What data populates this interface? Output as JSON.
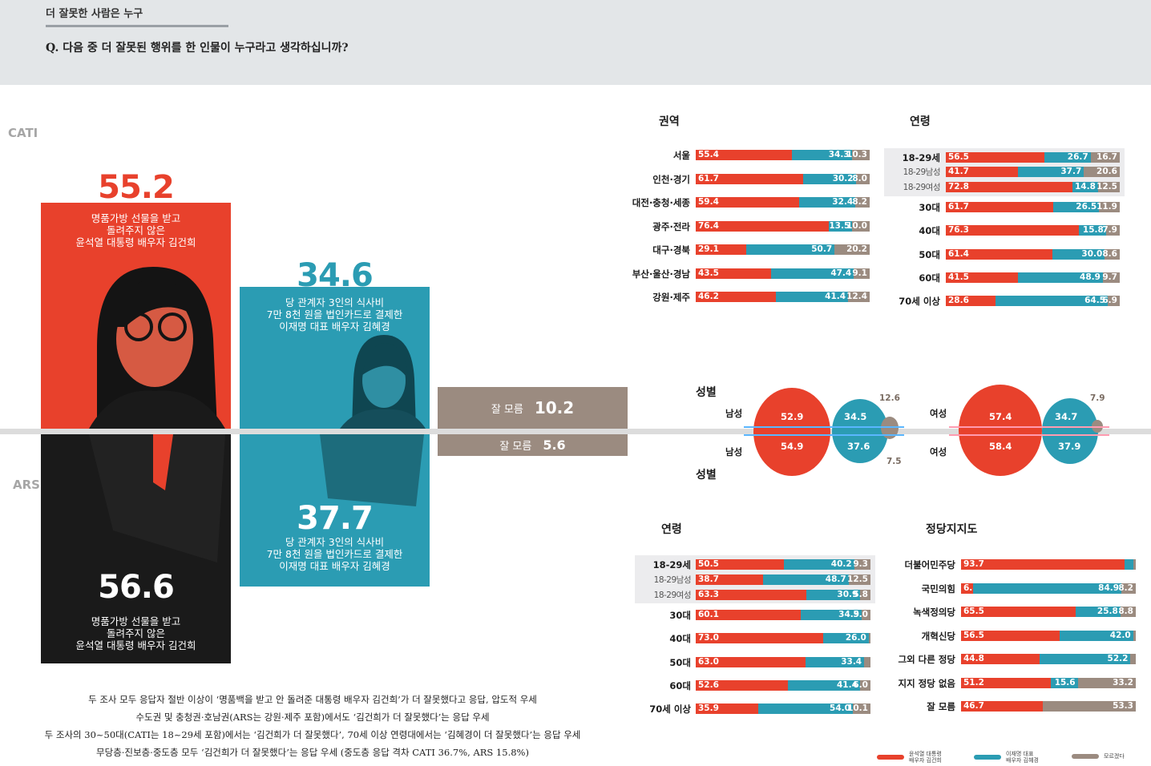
{
  "header": {
    "title": "더 잘못한 사람은 누구",
    "question": "Q. 다음 중 더 잘못된 행위를 한 인물이 누구라고 생각하십니까?"
  },
  "colors": {
    "red": "#e8412c",
    "teal": "#2b9cb3",
    "grey": "#9b8b80",
    "dark": "#1a1a1a"
  },
  "survey_labels": {
    "cati": "CATI",
    "ars": "ARS"
  },
  "main": {
    "cati_kim_geonhee": {
      "value": "55.2",
      "text": "명품가방 선물을 받고\n돌려주지 않은\n윤석열 대통령 배우자 김건희"
    },
    "cati_kim_hyekyung": {
      "value": "34.6",
      "text": "당 관계자 3인의 식사비\n7만 8천 원을 법인카드로 결제한\n이재명 대표 배우자 김혜경"
    },
    "ars_kim_hyekyung": {
      "value": "37.7",
      "text": "당 관계자 3인의 식사비\n7만 8천 원을 법인카드로 결제한\n이재명 대표 배우자 김혜경"
    },
    "ars_kim_geonhee": {
      "value": "56.6",
      "text": "명품가방 선물을 받고\n돌려주지 않은\n윤석열 대통령 배우자 김건희"
    },
    "cati_dont_know": {
      "label": "잘 모름",
      "value": "10.2"
    },
    "ars_dont_know": {
      "label": "잘 모름",
      "value": "5.6"
    }
  },
  "summary_lines": [
    "두 조사 모두 응답자 절반 이상이 ‘명품백을 받고 안 돌려준 대통령 배우자 김건희’가 더 잘못했다고 응답, 압도적 우세",
    "수도권 및 충청권·호남권(ARS는 강원·제주 포함)에서도 ‘김건희가 더 잘못했다’는 응답 우세",
    "두 조사의 30~50대(CATI는 18~29세 포함)에서는 ‘김건희가 더 잘못했다’, 70세 이상 연령대에서는 ‘김혜경이 더 잘못했다’는 응답 우세",
    "무당층·진보층·중도층 모두 ‘김건희가 더 잘못했다’는 응답 우세 (중도층 응답 격차 CATI 36.7%, ARS 15.8%)"
  ],
  "legend": [
    {
      "label": "윤석열 대통령\n배우자 김건희",
      "color": "#e8412c"
    },
    {
      "label": "이재명 대표\n배우자 김혜경",
      "color": "#2b9cb3"
    },
    {
      "label": "모르겠다",
      "color": "#9b8b80"
    }
  ],
  "chart_data": [
    {
      "type": "bar",
      "title": "",
      "categories": [
        "CATI",
        "ARS"
      ],
      "series": [
        {
          "name": "윤석열 대통령 배우자 김건희",
          "values": [
            55.2,
            56.6
          ]
        },
        {
          "name": "이재명 대표 배우자 김혜경",
          "values": [
            34.6,
            37.7
          ]
        },
        {
          "name": "잘 모름",
          "values": [
            10.2,
            5.6
          ]
        }
      ]
    },
    {
      "type": "bar",
      "stacked": true,
      "title": "권역",
      "categories": [
        "서울",
        "인천·경기",
        "대전·충청·세종",
        "광주·전라",
        "대구·경북",
        "부산·울산·경남",
        "강원·제주"
      ],
      "series": [
        {
          "values": [
            55.4,
            61.7,
            59.4,
            76.4,
            29.1,
            43.5,
            46.2
          ]
        },
        {
          "values": [
            34.3,
            30.2,
            32.4,
            13.5,
            50.7,
            47.4,
            41.4
          ]
        },
        {
          "values": [
            10.3,
            8.0,
            8.2,
            10.0,
            20.2,
            9.1,
            12.4
          ]
        }
      ]
    },
    {
      "type": "bar",
      "stacked": true,
      "title": "연령",
      "categories": [
        "18-29세",
        "18-29남성",
        "18-29여성",
        "30대",
        "40대",
        "50대",
        "60대",
        "70세 이상"
      ],
      "series": [
        {
          "values": [
            56.5,
            41.7,
            72.8,
            61.7,
            76.3,
            61.4,
            41.5,
            28.6
          ]
        },
        {
          "values": [
            26.7,
            37.7,
            14.8,
            26.5,
            15.8,
            30.0,
            48.9,
            64.5
          ]
        },
        {
          "values": [
            16.7,
            20.6,
            12.5,
            11.9,
            7.9,
            8.6,
            9.7,
            6.9
          ]
        }
      ]
    },
    {
      "type": "bubble",
      "title": "성별",
      "groups": [
        {
          "label": "남성",
          "cati": [
            52.9,
            34.5,
            12.6
          ],
          "ars": [
            54.9,
            37.6,
            7.5
          ]
        },
        {
          "label": "여성",
          "cati": [
            57.4,
            34.7,
            7.9
          ],
          "ars": [
            58.4,
            37.9,
            null
          ]
        }
      ]
    },
    {
      "type": "bar",
      "stacked": true,
      "title": "연령",
      "categories": [
        "18-29세",
        "18-29남성",
        "18-29여성",
        "30대",
        "40대",
        "50대",
        "60대",
        "70세 이상"
      ],
      "series": [
        {
          "values": [
            50.5,
            38.7,
            63.3,
            60.1,
            73.0,
            63.0,
            52.6,
            35.9
          ]
        },
        {
          "values": [
            40.2,
            48.7,
            30.9,
            34.9,
            26.0,
            33.4,
            41.4,
            54.0
          ]
        },
        {
          "values": [
            9.3,
            12.5,
            5.8,
            5.0,
            null,
            null,
            6.0,
            10.1
          ]
        }
      ]
    },
    {
      "type": "bar",
      "stacked": true,
      "title": "정당지지도",
      "categories": [
        "더불어민주당",
        "국민의힘",
        "녹색정의당",
        "개혁신당",
        "그외 다른 정당",
        "지지 정당 없음",
        "잘 모름"
      ],
      "series": [
        {
          "values": [
            93.7,
            6.8,
            65.5,
            56.5,
            44.8,
            51.2,
            46.7
          ]
        },
        {
          "values": [
            null,
            84.9,
            25.8,
            42.0,
            52.2,
            15.6,
            null
          ]
        },
        {
          "values": [
            null,
            8.2,
            8.8,
            null,
            null,
            33.2,
            53.3
          ]
        }
      ]
    }
  ],
  "panels": {
    "region": {
      "title": "권역",
      "rows": [
        {
          "label": "서울",
          "v": [
            55.4,
            34.3,
            10.3
          ],
          "t": [
            "55.4",
            "34.3",
            "10.3"
          ]
        },
        {
          "label": "인천·경기",
          "v": [
            61.7,
            30.2,
            8.0
          ],
          "t": [
            "61.7",
            "30.2",
            "8.0"
          ]
        },
        {
          "label": "대전·충청·세종",
          "v": [
            59.4,
            32.4,
            8.2
          ],
          "t": [
            "59.4",
            "32.4",
            "8.2"
          ]
        },
        {
          "label": "광주·전라",
          "v": [
            76.4,
            13.5,
            10.0
          ],
          "t": [
            "76.4",
            "13.5",
            "10.0"
          ]
        },
        {
          "label": "대구·경북",
          "v": [
            29.1,
            50.7,
            20.2
          ],
          "t": [
            "29.1",
            "50.7",
            "20.2"
          ]
        },
        {
          "label": "부산·울산·경남",
          "v": [
            43.5,
            47.4,
            9.1
          ],
          "t": [
            "43.5",
            "47.4",
            "9.1"
          ]
        },
        {
          "label": "강원·제주",
          "v": [
            46.2,
            41.4,
            12.4
          ],
          "t": [
            "46.2",
            "41.4",
            "12.4"
          ]
        }
      ]
    },
    "age_cati": {
      "title": "연령",
      "rows": [
        {
          "label": "18-29세",
          "v": [
            56.5,
            26.7,
            16.7
          ],
          "t": [
            "56.5",
            "26.7",
            "16.7"
          ],
          "hl": true
        },
        {
          "label": "18-29남성",
          "v": [
            41.7,
            37.7,
            20.6
          ],
          "t": [
            "41.7",
            "37.7",
            "20.6"
          ],
          "hl": true,
          "sub": true
        },
        {
          "label": "18-29여성",
          "v": [
            72.8,
            14.8,
            12.5
          ],
          "t": [
            "72.8",
            "14.8",
            "12.5"
          ],
          "hl": true,
          "sub": true
        },
        {
          "label": "30대",
          "v": [
            61.7,
            26.5,
            11.9
          ],
          "t": [
            "61.7",
            "26.5",
            "11.9"
          ]
        },
        {
          "label": "40대",
          "v": [
            76.3,
            15.8,
            7.9
          ],
          "t": [
            "76.3",
            "15.8",
            "7.9"
          ]
        },
        {
          "label": "50대",
          "v": [
            61.4,
            30.0,
            8.6
          ],
          "t": [
            "61.4",
            "30.0",
            "8.6"
          ]
        },
        {
          "label": "60대",
          "v": [
            41.5,
            48.9,
            9.7
          ],
          "t": [
            "41.5",
            "48.9",
            "9.7"
          ]
        },
        {
          "label": "70세 이상",
          "v": [
            28.6,
            64.5,
            6.9
          ],
          "t": [
            "28.6",
            "64.5",
            "6.9"
          ]
        }
      ]
    },
    "age_ars": {
      "title": "연령",
      "rows": [
        {
          "label": "18-29세",
          "v": [
            50.5,
            40.2,
            9.3
          ],
          "t": [
            "50.5",
            "40.2",
            "9.3"
          ],
          "hl": true
        },
        {
          "label": "18-29남성",
          "v": [
            38.7,
            48.7,
            12.5
          ],
          "t": [
            "38.7",
            "48.7",
            "12.5"
          ],
          "hl": true,
          "sub": true
        },
        {
          "label": "18-29여성",
          "v": [
            63.3,
            30.9,
            5.8
          ],
          "t": [
            "63.3",
            "30.9",
            "5.8"
          ],
          "hl": true,
          "sub": true
        },
        {
          "label": "30대",
          "v": [
            60.1,
            34.9,
            5.0
          ],
          "t": [
            "60.1",
            "34.9",
            "5.0"
          ]
        },
        {
          "label": "40대",
          "v": [
            73.0,
            26.0,
            1.0
          ],
          "t": [
            "73.0",
            "26.0",
            ""
          ]
        },
        {
          "label": "50대",
          "v": [
            63.0,
            33.4,
            3.6
          ],
          "t": [
            "63.0",
            "33.4",
            ""
          ]
        },
        {
          "label": "60대",
          "v": [
            52.6,
            41.4,
            6.0
          ],
          "t": [
            "52.6",
            "41.4",
            "6.0"
          ]
        },
        {
          "label": "70세 이상",
          "v": [
            35.9,
            54.0,
            10.1
          ],
          "t": [
            "35.9",
            "54.0",
            "10.1"
          ]
        }
      ]
    },
    "party": {
      "title": "정당지지도",
      "rows": [
        {
          "label": "더불어민주당",
          "v": [
            93.7,
            5.0,
            1.3
          ],
          "t": [
            "93.7",
            "",
            ""
          ]
        },
        {
          "label": "국민의힘",
          "v": [
            6.8,
            84.9,
            8.2
          ],
          "t": [
            "6.8",
            "84.9",
            "8.2"
          ]
        },
        {
          "label": "녹색정의당",
          "v": [
            65.5,
            25.8,
            8.8
          ],
          "t": [
            "65.5",
            "25.8",
            "8.8"
          ]
        },
        {
          "label": "개혁신당",
          "v": [
            56.5,
            42.0,
            1.5
          ],
          "t": [
            "56.5",
            "42.0",
            ""
          ]
        },
        {
          "label": "그외 다른 정당",
          "v": [
            44.8,
            52.2,
            3.0
          ],
          "t": [
            "44.8",
            "52.2",
            ""
          ]
        },
        {
          "label": "지지 정당 없음",
          "v": [
            51.2,
            15.6,
            33.2
          ],
          "t": [
            "51.2",
            "15.6",
            "33.2"
          ]
        },
        {
          "label": "잘 모름",
          "v": [
            46.7,
            0,
            53.3
          ],
          "t": [
            "46.7",
            "",
            "53.3"
          ]
        }
      ]
    },
    "gender": {
      "title_top": "성별",
      "title_bottom": "성별",
      "male": {
        "label": "남성",
        "cati": [
          "52.9",
          "34.5",
          "12.6"
        ],
        "ars": [
          "54.9",
          "37.6",
          "7.5"
        ]
      },
      "female": {
        "label": "여성",
        "cati": [
          "57.4",
          "34.7",
          "7.9"
        ],
        "ars": [
          "58.4",
          "37.9"
        ]
      }
    }
  }
}
